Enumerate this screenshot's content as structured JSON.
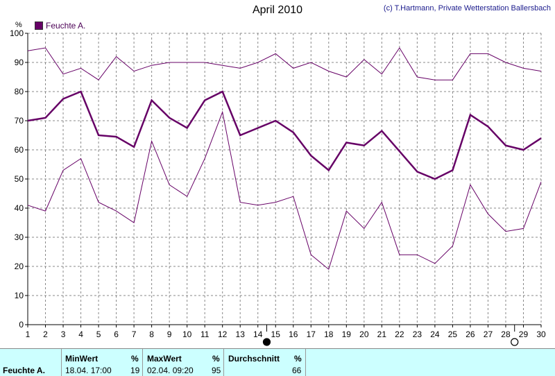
{
  "chart_data": {
    "type": "line",
    "title": "April 2010",
    "copyright": "(c) T.Hartmann, Private Wetterstation Ballersbach",
    "ylabel": "%",
    "ylim": [
      0,
      100
    ],
    "yticks": [
      0,
      10,
      20,
      30,
      40,
      50,
      60,
      70,
      80,
      90,
      100
    ],
    "x": [
      1,
      2,
      3,
      4,
      5,
      6,
      7,
      8,
      9,
      10,
      11,
      12,
      13,
      14,
      15,
      16,
      17,
      18,
      19,
      20,
      21,
      22,
      23,
      24,
      25,
      26,
      27,
      28,
      29,
      30
    ],
    "legend": "Feuchte A.",
    "legend_position": "top-left",
    "grid": true,
    "series": [
      {
        "name": "Feuchte A.",
        "role": "max",
        "values": [
          94,
          95,
          86,
          88,
          84,
          92,
          87,
          89,
          90,
          90,
          90,
          89,
          88,
          90,
          93,
          88,
          90,
          87,
          85,
          91,
          86,
          95,
          85,
          84,
          84,
          93,
          93,
          90,
          88,
          87
        ]
      },
      {
        "name": "Feuchte A.",
        "role": "avg",
        "values": [
          70,
          71,
          77.5,
          80,
          65,
          64.5,
          61,
          77,
          71,
          67.5,
          77,
          80,
          65,
          67.5,
          70,
          66,
          58,
          53,
          62.5,
          61.5,
          66.5,
          59.5,
          52.5,
          50,
          53,
          72,
          68,
          61.5,
          60,
          64
        ]
      },
      {
        "name": "Feuchte A.",
        "role": "min",
        "values": [
          41,
          39,
          53,
          57,
          42,
          39,
          35,
          63,
          48,
          44,
          57,
          73,
          42,
          41,
          42,
          44,
          24,
          19,
          39,
          33,
          42,
          24,
          24,
          21,
          27,
          48,
          38,
          32,
          33,
          49
        ]
      }
    ],
    "colors": {
      "line": "#660066",
      "grid": "#888888",
      "stats_bg": "#ccffff"
    },
    "moon_phases": [
      {
        "day": 14.5,
        "phase": "full-moon"
      },
      {
        "day": 28.5,
        "phase": "new-moon"
      }
    ]
  },
  "stats": {
    "row_label": "Feuchte A.",
    "min_header": "MinWert",
    "min_unit": "%",
    "min_date": "18.04.  17:00",
    "min_value": "19",
    "max_header": "MaxWert",
    "max_unit": "%",
    "max_date": "02.04.  09:20",
    "max_value": "95",
    "avg_header": "Durchschnitt",
    "avg_unit": "%",
    "avg_value": "66"
  }
}
